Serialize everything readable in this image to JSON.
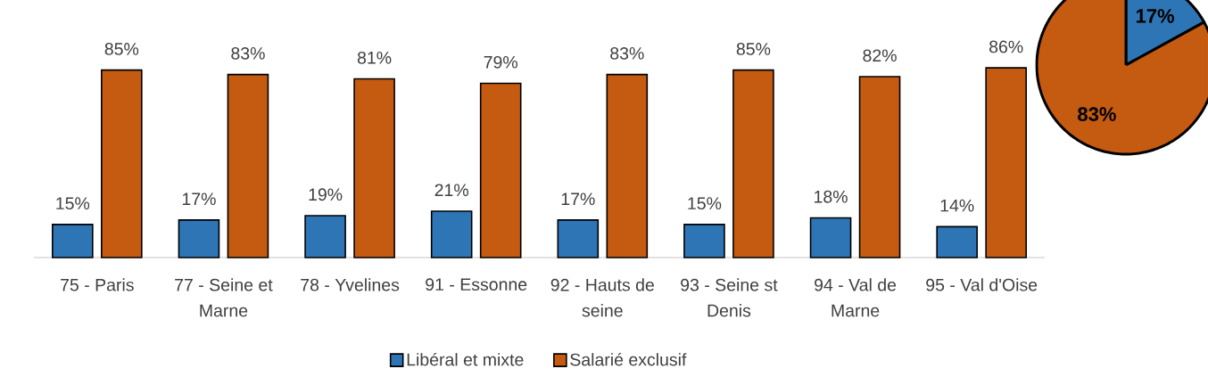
{
  "chart_data": [
    {
      "type": "bar",
      "categories": [
        "75 - Paris",
        "77 - Seine et Marne",
        "78 - Yvelines",
        "91 - Essonne",
        "92 - Hauts de seine",
        "93 - Seine st Denis",
        "94 - Val de Marne",
        "95 - Val d'Oise"
      ],
      "series": [
        {
          "name": "Libéral et mixte",
          "color": "#2e75b6",
          "values": [
            15,
            17,
            19,
            21,
            17,
            15,
            18,
            14
          ],
          "value_labels": [
            "15%",
            "17%",
            "19%",
            "21%",
            "17%",
            "15%",
            "18%",
            "14%"
          ]
        },
        {
          "name": "Salarié exclusif",
          "color": "#c55a11",
          "values": [
            85,
            83,
            81,
            79,
            83,
            85,
            82,
            86
          ],
          "value_labels": [
            "85%",
            "83%",
            "81%",
            "79%",
            "83%",
            "85%",
            "82%",
            "86%"
          ]
        }
      ],
      "legend": "bottom"
    },
    {
      "type": "pie",
      "categories": [
        null,
        null
      ],
      "values": [
        17,
        83
      ],
      "colors": [
        "#2e75b6",
        "#c55a11"
      ],
      "value_labels": [
        "17%",
        "83%"
      ]
    }
  ]
}
